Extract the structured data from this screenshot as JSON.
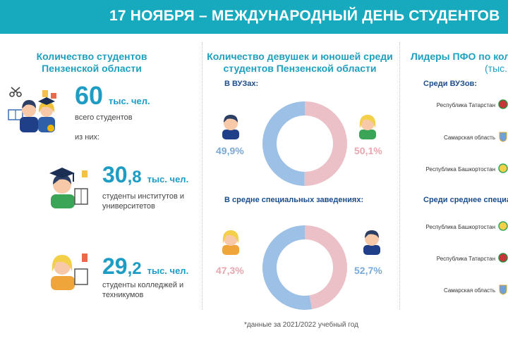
{
  "header": {
    "title": "17 НОЯБРЯ – МЕЖДУНАРОДНЫЙ ДЕНЬ СТУДЕНТОВ"
  },
  "left": {
    "title_line1": "Количество студентов",
    "title_line2": "Пензенской области",
    "total": {
      "value": "60",
      "unit": "тыс. чел.",
      "label": "всего студентов"
    },
    "of_them": "из них:",
    "universities": {
      "int": "30",
      "frac": ",8",
      "unit": "тыс. чел.",
      "label_line1": "студенты институтов и",
      "label_line2": "университетов"
    },
    "colleges": {
      "int": "29",
      "frac": ",2",
      "unit": "тыс. чел.",
      "label_line1": "студенты колледжей и",
      "label_line2": "техникумов"
    }
  },
  "middle": {
    "title_line1": "Количество девушек и юношей среди",
    "title_line2": "студентов Пензенской области",
    "sections": [
      {
        "label": "В ВУЗах:",
        "male_pct": "49,9%",
        "female_pct": "50,1%",
        "male_share": 49.9,
        "female_share": 50.1
      },
      {
        "label": "В средне специальных заведениях:",
        "female_pct": "47,3%",
        "male_pct": "52,7%",
        "male_share": 52.7,
        "female_share": 47.3
      }
    ],
    "colors": {
      "male": "#9dc1e6",
      "female": "#ebc0c6"
    }
  },
  "right": {
    "title_line1": "Лидеры ПФО по кол",
    "title_line2": "(тыс.",
    "sections": [
      {
        "label": "Среди ВУЗов:",
        "regions": [
          "Республика Татарстан",
          "Самарская область",
          "Республика Башкортостан"
        ]
      },
      {
        "label": "Среди среднее специа",
        "regions": [
          "Республика Башкортостан",
          "Республика Татарстан",
          "Самарская область"
        ]
      }
    ]
  },
  "footnote": "*данные за 2021/2022 учебный год"
}
